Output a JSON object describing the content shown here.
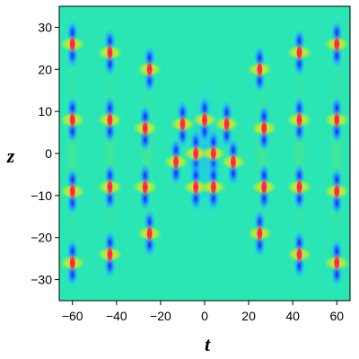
{
  "chart_data": {
    "type": "heatmap",
    "title": "",
    "xlabel": "t",
    "ylabel": "z",
    "xlim": [
      -66,
      66
    ],
    "ylim": [
      -35,
      35
    ],
    "x_ticks": [
      -60,
      -40,
      -20,
      0,
      20,
      40,
      60
    ],
    "x_tick_labels": [
      "−60",
      "−40",
      "−20",
      "0",
      "20",
      "40",
      "60"
    ],
    "y_ticks": [
      -30,
      -20,
      -10,
      0,
      10,
      20,
      30
    ],
    "y_tick_labels": [
      "−30",
      "−20",
      "−10",
      "0",
      "10",
      "20",
      "30"
    ],
    "grid": false,
    "colors": {
      "background": "#26e6b8",
      "trough": "#0a14d6",
      "peak": "#ff2a6a",
      "halo": "#ffe600"
    },
    "peaks": [
      {
        "t": -60,
        "z": 26
      },
      {
        "t": -43,
        "z": 24
      },
      {
        "t": -25,
        "z": 20
      },
      {
        "t": -60,
        "z": 8
      },
      {
        "t": -43,
        "z": 8
      },
      {
        "t": -27,
        "z": 6
      },
      {
        "t": -60,
        "z": -9
      },
      {
        "t": -43,
        "z": -8
      },
      {
        "t": -27,
        "z": -8
      },
      {
        "t": -25,
        "z": -19
      },
      {
        "t": -43,
        "z": -24
      },
      {
        "t": -60,
        "z": -26
      },
      {
        "t": 25,
        "z": 20
      },
      {
        "t": 43,
        "z": 24
      },
      {
        "t": 60,
        "z": 26
      },
      {
        "t": 27,
        "z": 6
      },
      {
        "t": 43,
        "z": 8
      },
      {
        "t": 60,
        "z": 8
      },
      {
        "t": 27,
        "z": -8
      },
      {
        "t": 43,
        "z": -8
      },
      {
        "t": 60,
        "z": -9
      },
      {
        "t": 25,
        "z": -19
      },
      {
        "t": 43,
        "z": -24
      },
      {
        "t": 60,
        "z": -26
      },
      {
        "t": -10,
        "z": 7
      },
      {
        "t": 0,
        "z": 8
      },
      {
        "t": 10,
        "z": 7
      },
      {
        "t": -13,
        "z": -2
      },
      {
        "t": -4,
        "z": 0
      },
      {
        "t": 4,
        "z": 0
      },
      {
        "t": 13,
        "z": -2
      },
      {
        "t": -4,
        "z": -8
      },
      {
        "t": 4,
        "z": -8
      }
    ]
  }
}
